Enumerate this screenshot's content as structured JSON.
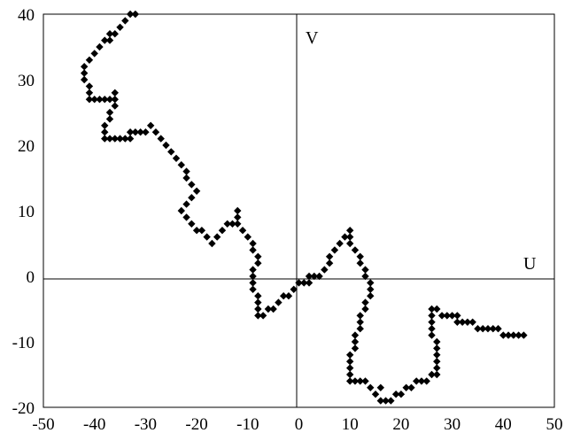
{
  "chart_data": {
    "type": "scatter",
    "xlabel": "U",
    "ylabel": "V",
    "xlim": [
      -50,
      50
    ],
    "ylim": [
      -20,
      40
    ],
    "xticks": [
      -50,
      -40,
      -30,
      -20,
      -10,
      0,
      10,
      20,
      30,
      40,
      50
    ],
    "yticks": [
      -20,
      -10,
      0,
      10,
      20,
      30,
      40
    ],
    "xtick_labels": [
      "-50",
      "-40",
      "-30",
      "-20",
      "-10",
      "0",
      "10",
      "20",
      "30",
      "40",
      "50"
    ],
    "ytick_labels": [
      "-20",
      "-10",
      "0",
      "10",
      "20",
      "30",
      "40"
    ],
    "grid": false,
    "marker": "diamond",
    "marker_color": "#000000",
    "series": [
      {
        "points": [
          [
            -32,
            40
          ],
          [
            -33,
            40
          ],
          [
            -34,
            39
          ],
          [
            -35,
            38
          ],
          [
            -36,
            37
          ],
          [
            -37,
            37
          ],
          [
            -37,
            36
          ],
          [
            -38,
            36
          ],
          [
            -39,
            35
          ],
          [
            -40,
            34
          ],
          [
            -41,
            33
          ],
          [
            -42,
            32
          ],
          [
            -42,
            31
          ],
          [
            -42,
            30
          ],
          [
            -41,
            29
          ],
          [
            -41,
            28
          ],
          [
            -41,
            27
          ],
          [
            -40,
            27
          ],
          [
            -39,
            27
          ],
          [
            -38,
            27
          ],
          [
            -37,
            27
          ],
          [
            -36,
            27
          ],
          [
            -36,
            28
          ],
          [
            -36,
            26
          ],
          [
            -37,
            25
          ],
          [
            -37,
            24
          ],
          [
            -38,
            23
          ],
          [
            -38,
            22
          ],
          [
            -38,
            21
          ],
          [
            -37,
            21
          ],
          [
            -36,
            21
          ],
          [
            -35,
            21
          ],
          [
            -34,
            21
          ],
          [
            -33,
            21
          ],
          [
            -33,
            22
          ],
          [
            -32,
            22
          ],
          [
            -31,
            22
          ],
          [
            -30,
            22
          ],
          [
            -29,
            23
          ],
          [
            -28,
            22
          ],
          [
            -27,
            21
          ],
          [
            -26,
            20
          ],
          [
            -25,
            19
          ],
          [
            -24,
            18
          ],
          [
            -23,
            17
          ],
          [
            -22,
            16
          ],
          [
            -22,
            15
          ],
          [
            -21,
            14
          ],
          [
            -20,
            13
          ],
          [
            -21,
            12
          ],
          [
            -22,
            11
          ],
          [
            -23,
            10
          ],
          [
            -22,
            9
          ],
          [
            -21,
            8
          ],
          [
            -20,
            7
          ],
          [
            -19,
            7
          ],
          [
            -18,
            6
          ],
          [
            -17,
            5
          ],
          [
            -16,
            6
          ],
          [
            -15,
            7
          ],
          [
            -14,
            8
          ],
          [
            -13,
            8
          ],
          [
            -12,
            9
          ],
          [
            -12,
            10
          ],
          [
            -12,
            8
          ],
          [
            -11,
            7
          ],
          [
            -10,
            6
          ],
          [
            -9,
            5
          ],
          [
            -9,
            4
          ],
          [
            -8,
            3
          ],
          [
            -8,
            2
          ],
          [
            -9,
            1
          ],
          [
            -9,
            0
          ],
          [
            -9,
            -1
          ],
          [
            -9,
            -2
          ],
          [
            -8,
            -3
          ],
          [
            -8,
            -4
          ],
          [
            -8,
            -5
          ],
          [
            -8,
            -6
          ],
          [
            -7,
            -6
          ],
          [
            -6,
            -5
          ],
          [
            -5,
            -5
          ],
          [
            -4,
            -4
          ],
          [
            -3,
            -3
          ],
          [
            -2,
            -3
          ],
          [
            -1,
            -2
          ],
          [
            0,
            -1
          ],
          [
            1,
            -1
          ],
          [
            2,
            -1
          ],
          [
            2,
            0
          ],
          [
            3,
            0
          ],
          [
            4,
            0
          ],
          [
            5,
            1
          ],
          [
            6,
            2
          ],
          [
            6,
            3
          ],
          [
            7,
            4
          ],
          [
            8,
            5
          ],
          [
            9,
            6
          ],
          [
            10,
            7
          ],
          [
            10,
            6
          ],
          [
            10,
            5
          ],
          [
            11,
            4
          ],
          [
            12,
            3
          ],
          [
            12,
            2
          ],
          [
            13,
            1
          ],
          [
            13,
            0
          ],
          [
            14,
            -1
          ],
          [
            14,
            -2
          ],
          [
            14,
            -3
          ],
          [
            13,
            -4
          ],
          [
            13,
            -5
          ],
          [
            12,
            -6
          ],
          [
            12,
            -7
          ],
          [
            12,
            -8
          ],
          [
            11,
            -9
          ],
          [
            11,
            -10
          ],
          [
            11,
            -11
          ],
          [
            10,
            -12
          ],
          [
            10,
            -13
          ],
          [
            10,
            -14
          ],
          [
            10,
            -15
          ],
          [
            10,
            -16
          ],
          [
            11,
            -16
          ],
          [
            12,
            -16
          ],
          [
            13,
            -16
          ],
          [
            14,
            -17
          ],
          [
            15,
            -18
          ],
          [
            16,
            -19
          ],
          [
            16,
            -17
          ],
          [
            17,
            -19
          ],
          [
            18,
            -19
          ],
          [
            19,
            -18
          ],
          [
            20,
            -18
          ],
          [
            21,
            -17
          ],
          [
            22,
            -17
          ],
          [
            23,
            -16
          ],
          [
            24,
            -16
          ],
          [
            25,
            -16
          ],
          [
            26,
            -15
          ],
          [
            27,
            -15
          ],
          [
            27,
            -14
          ],
          [
            27,
            -13
          ],
          [
            27,
            -12
          ],
          [
            27,
            -11
          ],
          [
            27,
            -10
          ],
          [
            26,
            -9
          ],
          [
            26,
            -8
          ],
          [
            26,
            -7
          ],
          [
            26,
            -6
          ],
          [
            26,
            -5
          ],
          [
            27,
            -5
          ],
          [
            28,
            -6
          ],
          [
            29,
            -6
          ],
          [
            30,
            -6
          ],
          [
            31,
            -6
          ],
          [
            31,
            -7
          ],
          [
            32,
            -7
          ],
          [
            33,
            -7
          ],
          [
            34,
            -7
          ],
          [
            35,
            -8
          ],
          [
            36,
            -8
          ],
          [
            37,
            -8
          ],
          [
            38,
            -8
          ],
          [
            39,
            -8
          ],
          [
            40,
            -9
          ],
          [
            41,
            -9
          ],
          [
            42,
            -9
          ],
          [
            43,
            -9
          ],
          [
            44,
            -9
          ]
        ]
      }
    ]
  }
}
